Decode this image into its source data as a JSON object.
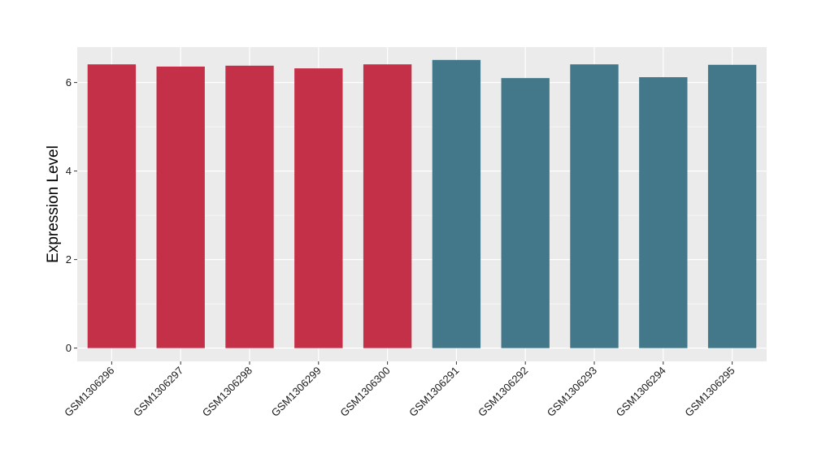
{
  "chart_data": {
    "type": "bar",
    "title": "",
    "xlabel": "",
    "ylabel": "Expression Level",
    "ylim": [
      -0.3,
      6.8
    ],
    "yticks": [
      0,
      2,
      4,
      6
    ],
    "grid": true,
    "legend": "none",
    "categories": [
      "GSM1306296",
      "GSM1306297",
      "GSM1306298",
      "GSM1306299",
      "GSM1306300",
      "GSM1306291",
      "GSM1306292",
      "GSM1306293",
      "GSM1306294",
      "GSM1306295"
    ],
    "values": [
      6.41,
      6.36,
      6.38,
      6.32,
      6.41,
      6.51,
      6.1,
      6.41,
      6.12,
      6.4
    ],
    "bar_colors": [
      "#c33047",
      "#c33047",
      "#c33047",
      "#c33047",
      "#c33047",
      "#427889",
      "#427889",
      "#427889",
      "#427889",
      "#427889"
    ]
  },
  "colors": {
    "panel_background": "#ebebeb",
    "grid": "#ffffff"
  }
}
